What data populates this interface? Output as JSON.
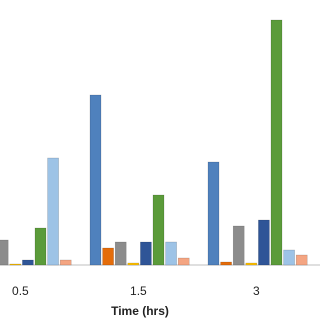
{
  "chart_data": {
    "type": "bar",
    "x_label": "Time (hrs)",
    "categories": [
      "0.5",
      "1.5",
      "3"
    ],
    "series": [
      {
        "color": "#4f81bd",
        "values": [
          null,
          170,
          103
        ]
      },
      {
        "color": "#e46c0a",
        "values": [
          null,
          17,
          3
        ]
      },
      {
        "color": "#8c8c8c",
        "values": [
          25,
          23,
          39
        ]
      },
      {
        "color": "#ffc000",
        "values": [
          1,
          2,
          2
        ]
      },
      {
        "color": "#2f5597",
        "values": [
          5,
          23,
          45
        ]
      },
      {
        "color": "#5b9b3a",
        "values": [
          37,
          70,
          245
        ]
      },
      {
        "color": "#9dc3e6",
        "values": [
          107,
          23,
          15
        ]
      },
      {
        "color": "#f4a582",
        "values": [
          5,
          7,
          10
        ]
      }
    ],
    "ylim": [
      0,
      250
    ]
  }
}
